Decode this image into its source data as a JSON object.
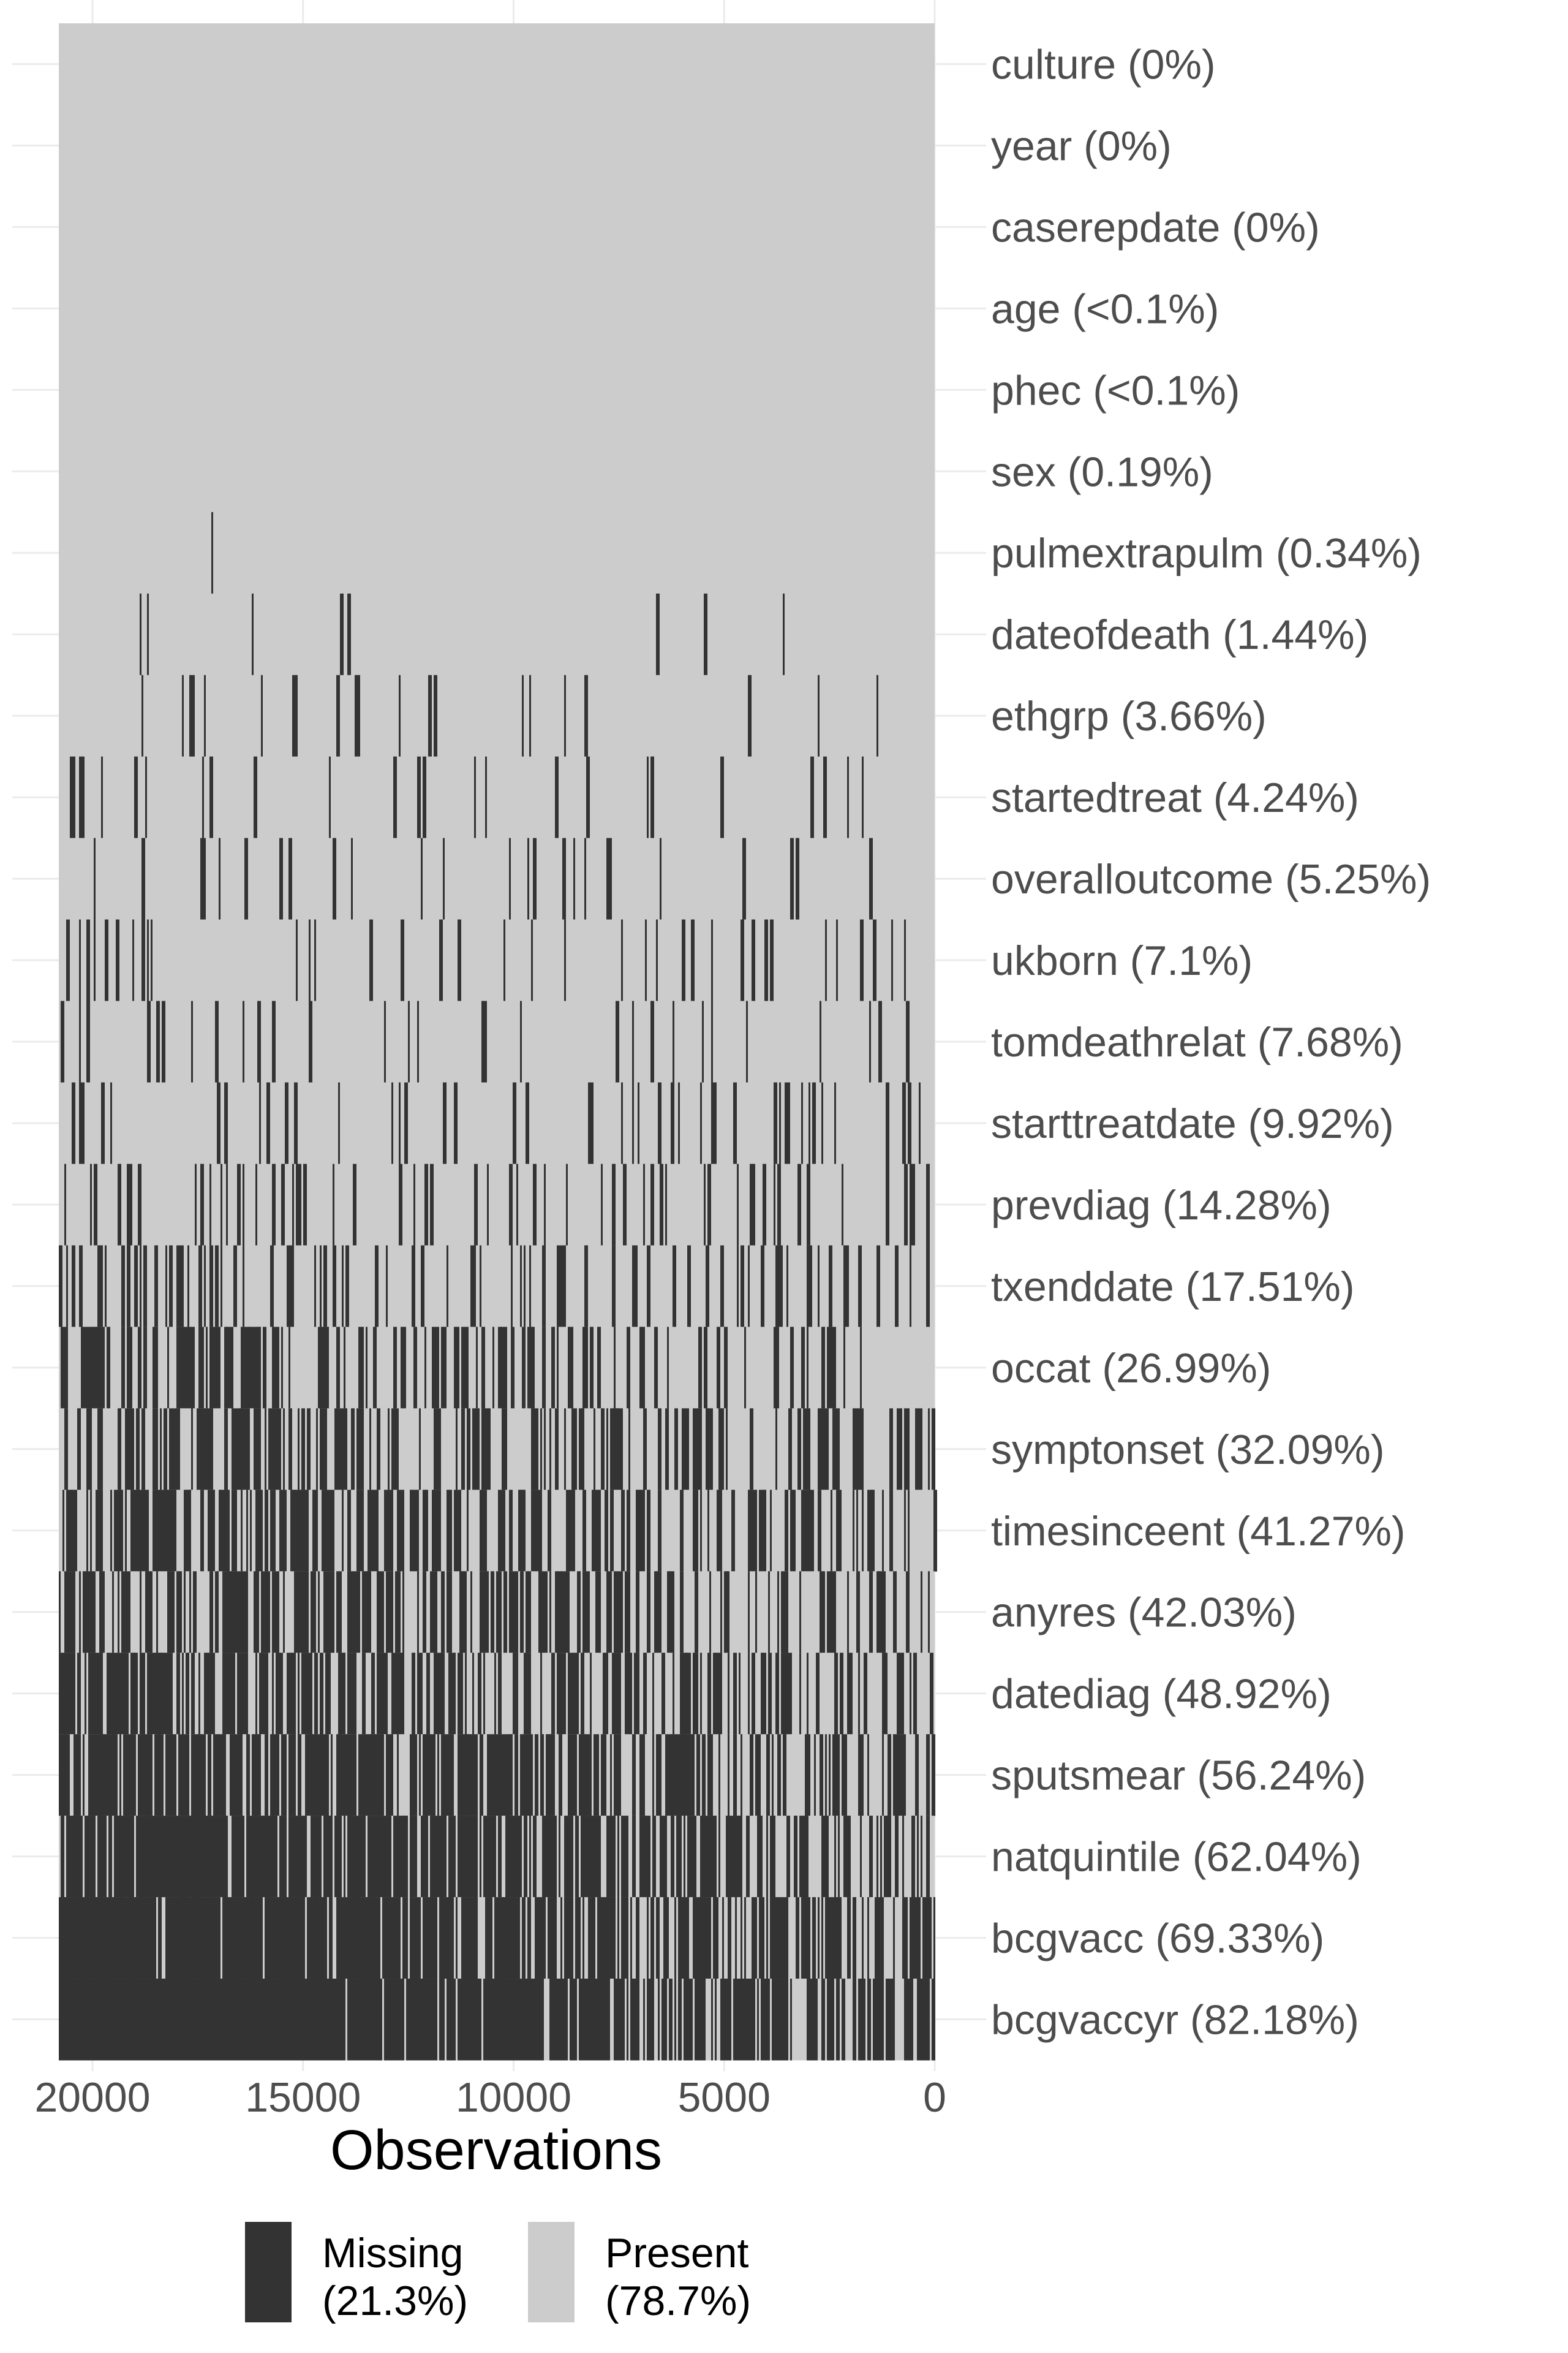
{
  "chart_data": {
    "type": "heatmap",
    "title": "",
    "xlabel": "Observations",
    "ylabel": "",
    "xlim": [
      20800,
      0
    ],
    "x_ticks": [
      "20000",
      "15000",
      "10000",
      "5000",
      "0"
    ],
    "x_tick_values": [
      20000,
      15000,
      10000,
      5000,
      0
    ],
    "grid": true,
    "legend_position": "bottom",
    "colors": {
      "missing": "#333333",
      "present": "#cccccc"
    },
    "legend": [
      {
        "key": "missing",
        "line1": "Missing",
        "line2": "(21.3%)"
      },
      {
        "key": "present",
        "line1": "Present",
        "line2": "(78.7%)"
      }
    ],
    "variables": [
      {
        "name": "culture",
        "label": "culture (0%)",
        "missing_pct": 0
      },
      {
        "name": "year",
        "label": "year (0%)",
        "missing_pct": 0
      },
      {
        "name": "caserepdate",
        "label": "caserepdate (0%)",
        "missing_pct": 0
      },
      {
        "name": "age",
        "label": "age (<0.1%)",
        "missing_pct": 0.05
      },
      {
        "name": "phec",
        "label": "phec (<0.1%)",
        "missing_pct": 0.05
      },
      {
        "name": "sex",
        "label": "sex (0.19%)",
        "missing_pct": 0.19
      },
      {
        "name": "pulmextrapulm",
        "label": "pulmextrapulm (0.34%)",
        "missing_pct": 0.34
      },
      {
        "name": "dateofdeath",
        "label": "dateofdeath (1.44%)",
        "missing_pct": 1.44
      },
      {
        "name": "ethgrp",
        "label": "ethgrp (3.66%)",
        "missing_pct": 3.66
      },
      {
        "name": "startedtreat",
        "label": "startedtreat (4.24%)",
        "missing_pct": 4.24
      },
      {
        "name": "overalloutcome",
        "label": "overalloutcome (5.25%)",
        "missing_pct": 5.25
      },
      {
        "name": "ukborn",
        "label": "ukborn (7.1%)",
        "missing_pct": 7.1
      },
      {
        "name": "tomdeathrelat",
        "label": "tomdeathrelat (7.68%)",
        "missing_pct": 7.68
      },
      {
        "name": "starttreatdate",
        "label": "starttreatdate (9.92%)",
        "missing_pct": 9.92
      },
      {
        "name": "prevdiag",
        "label": "prevdiag (14.28%)",
        "missing_pct": 14.28
      },
      {
        "name": "txenddate",
        "label": "txenddate (17.51%)",
        "missing_pct": 17.51
      },
      {
        "name": "occat",
        "label": "occat (26.99%)",
        "missing_pct": 26.99
      },
      {
        "name": "symptonset",
        "label": "symptonset (32.09%)",
        "missing_pct": 32.09
      },
      {
        "name": "timesinceent",
        "label": "timesinceent (41.27%)",
        "missing_pct": 41.27
      },
      {
        "name": "anyres",
        "label": "anyres (42.03%)",
        "missing_pct": 42.03
      },
      {
        "name": "datediag",
        "label": "datediag (48.92%)",
        "missing_pct": 48.92
      },
      {
        "name": "sputsmear",
        "label": "sputsmear (56.24%)",
        "missing_pct": 56.24
      },
      {
        "name": "natquintile",
        "label": "natquintile (62.04%)",
        "missing_pct": 62.04
      },
      {
        "name": "bcgvacc",
        "label": "bcgvacc (69.33%)",
        "missing_pct": 69.33
      },
      {
        "name": "bcgvaccyr",
        "label": "bcgvaccyr (82.18%)",
        "missing_pct": 82.18
      }
    ]
  }
}
